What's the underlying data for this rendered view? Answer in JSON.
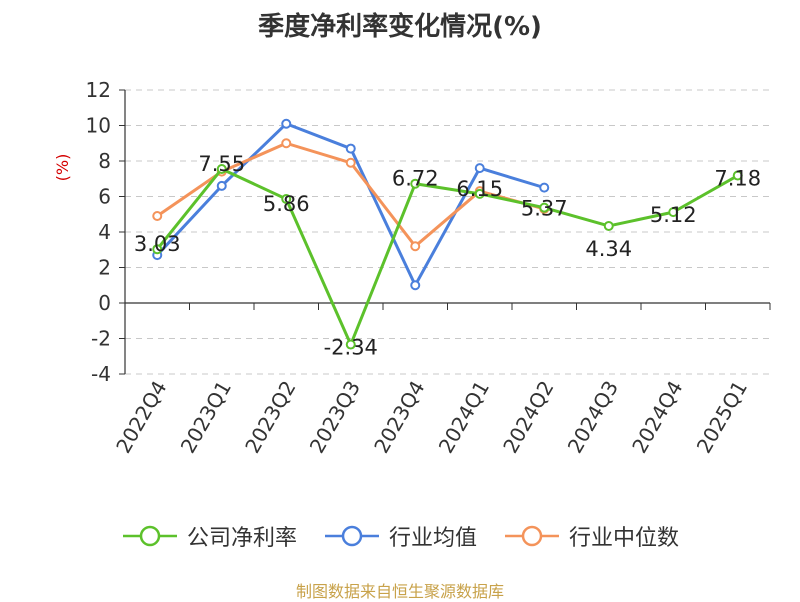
{
  "chart_data": {
    "type": "line",
    "title": "季度净利率变化情况(%)",
    "ylabel": "(%)",
    "xlabel": "",
    "categories": [
      "2022Q4",
      "2023Q1",
      "2023Q2",
      "2023Q3",
      "2023Q4",
      "2024Q1",
      "2024Q2",
      "2024Q3",
      "2024Q4",
      "2025Q1"
    ],
    "ylim": [
      -4,
      12
    ],
    "yticks": [
      -4,
      -2,
      0,
      2,
      4,
      6,
      8,
      10,
      12
    ],
    "grid": true,
    "legend": "bottom",
    "series": [
      {
        "name": "公司净利率",
        "color": "#5cc12b",
        "show_labels": true,
        "values": [
          3.03,
          7.55,
          5.86,
          -2.34,
          6.72,
          6.15,
          5.37,
          4.34,
          5.12,
          7.18
        ],
        "labels": [
          "3.03",
          "7.55",
          "5.86",
          "-2.34",
          "6.72",
          "6.15",
          "5.37",
          "4.34",
          "5.12",
          "7.18"
        ]
      },
      {
        "name": "行业均值",
        "color": "#4a7fdc",
        "show_labels": false,
        "values": [
          2.7,
          6.6,
          10.1,
          8.7,
          1.0,
          7.6,
          6.5,
          null,
          null,
          null
        ]
      },
      {
        "name": "行业中位数",
        "color": "#f4935a",
        "show_labels": false,
        "values": [
          4.9,
          7.4,
          9.0,
          7.9,
          3.2,
          6.3,
          5.3,
          null,
          null,
          null
        ]
      }
    ]
  },
  "source": "制图数据来自恒生聚源数据库"
}
